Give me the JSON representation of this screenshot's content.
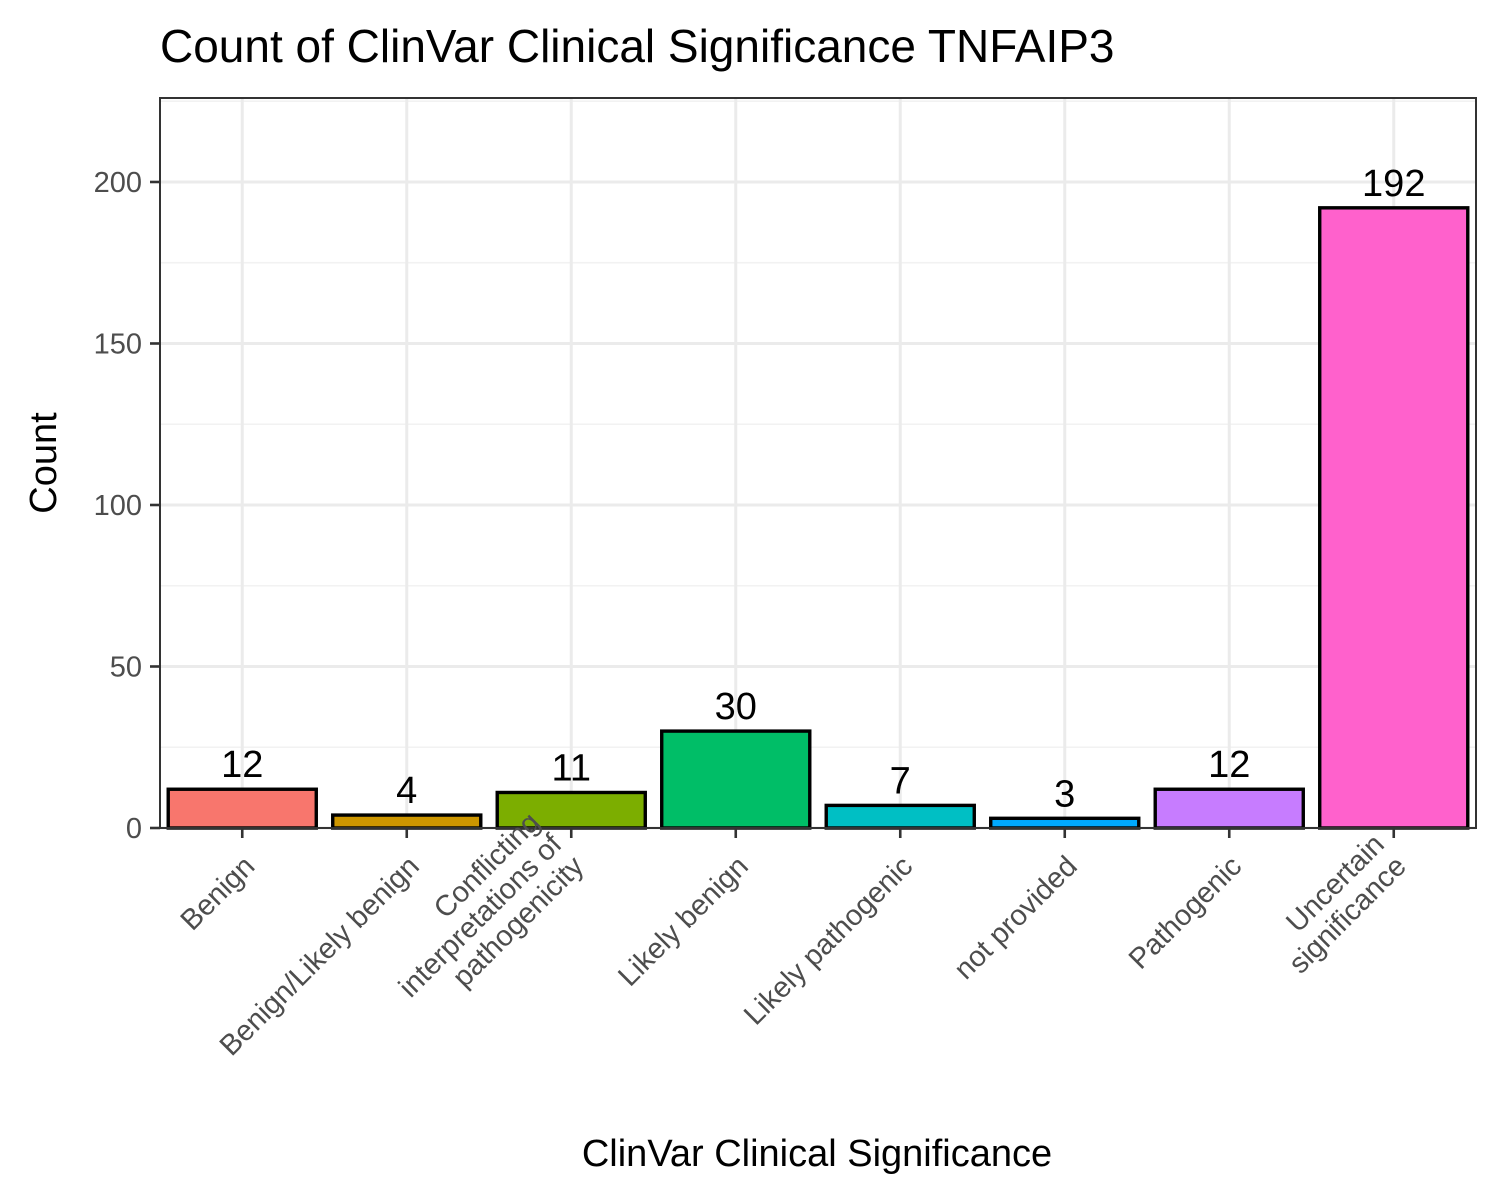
{
  "chart_data": {
    "type": "bar",
    "title": "Count of ClinVar Clinical Significance TNFAIP3",
    "xlabel": "ClinVar Clinical Significance",
    "ylabel": "Count",
    "ylim": [
      0,
      226
    ],
    "yticks": [
      0,
      50,
      100,
      150,
      200
    ],
    "grid": true,
    "legend": "none",
    "categories": [
      "Benign",
      "Benign/Likely benign",
      "Conflicting interpretations of pathogenicity",
      "Likely benign",
      "Likely pathogenic",
      "not provided",
      "Pathogenic",
      "Uncertain significance"
    ],
    "category_label_lines": [
      [
        "Benign"
      ],
      [
        "Benign/Likely benign"
      ],
      [
        "Conflicting",
        "interpretations of",
        "pathogenicity"
      ],
      [
        "Likely benign"
      ],
      [
        "Likely pathogenic"
      ],
      [
        "not provided"
      ],
      [
        "Pathogenic"
      ],
      [
        "Uncertain",
        "significance"
      ]
    ],
    "values": [
      12,
      4,
      11,
      30,
      7,
      3,
      12,
      192
    ],
    "colors": [
      "#F8766D",
      "#CD9600",
      "#7CAE00",
      "#00BE67",
      "#00BFC4",
      "#00A9FF",
      "#C77CFF",
      "#FF61CC"
    ]
  }
}
